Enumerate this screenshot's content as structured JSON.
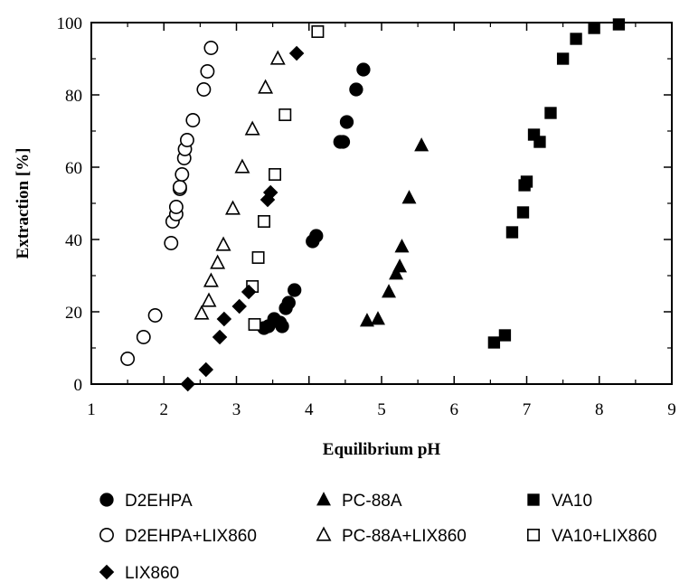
{
  "chart_data": {
    "type": "scatter",
    "title": "",
    "xlabel": "Equilibrium pH",
    "ylabel": "Extraction [%]",
    "xlim": [
      1,
      9
    ],
    "ylim": [
      0,
      100
    ],
    "x_ticks": [
      "1",
      "2",
      "3",
      "4",
      "5",
      "6",
      "7",
      "8",
      "9"
    ],
    "y_ticks": [
      "0",
      "20",
      "40",
      "60",
      "80",
      "100"
    ],
    "grid": false,
    "legend_position": "bottom",
    "series": [
      {
        "name": "D2EHPA",
        "marker": "filled-circle",
        "points": [
          [
            3.38,
            15.5
          ],
          [
            3.44,
            16
          ],
          [
            3.52,
            18
          ],
          [
            3.6,
            17
          ],
          [
            3.63,
            16
          ],
          [
            3.68,
            21
          ],
          [
            3.72,
            22.5
          ],
          [
            3.8,
            26
          ],
          [
            4.05,
            39.5
          ],
          [
            4.1,
            41
          ],
          [
            4.43,
            67
          ],
          [
            4.47,
            67
          ],
          [
            4.52,
            72.5
          ],
          [
            4.65,
            81.5
          ],
          [
            4.75,
            87
          ]
        ]
      },
      {
        "name": "PC-88A",
        "marker": "filled-triangle",
        "points": [
          [
            4.8,
            17.5
          ],
          [
            4.95,
            18
          ],
          [
            5.1,
            25.5
          ],
          [
            5.2,
            30.5
          ],
          [
            5.25,
            32.5
          ],
          [
            5.28,
            38
          ],
          [
            5.38,
            51.5
          ],
          [
            5.55,
            66
          ]
        ]
      },
      {
        "name": "VA10",
        "marker": "filled-square",
        "points": [
          [
            6.55,
            11.5
          ],
          [
            6.7,
            13.5
          ],
          [
            6.8,
            42
          ],
          [
            6.95,
            47.5
          ],
          [
            6.97,
            55
          ],
          [
            7.0,
            56
          ],
          [
            7.1,
            69
          ],
          [
            7.18,
            67
          ],
          [
            7.33,
            75
          ],
          [
            7.5,
            90
          ],
          [
            7.68,
            95.5
          ],
          [
            7.93,
            98.5
          ],
          [
            8.27,
            99.5
          ]
        ]
      },
      {
        "name": "D2EHPA+LIX860",
        "marker": "open-circle",
        "points": [
          [
            1.5,
            7
          ],
          [
            1.72,
            13
          ],
          [
            1.88,
            19
          ],
          [
            2.1,
            39
          ],
          [
            2.12,
            45
          ],
          [
            2.17,
            47
          ],
          [
            2.17,
            49
          ],
          [
            2.22,
            54
          ],
          [
            2.22,
            54.5
          ],
          [
            2.25,
            58
          ],
          [
            2.28,
            62.5
          ],
          [
            2.29,
            65
          ],
          [
            2.32,
            67.5
          ],
          [
            2.4,
            73
          ],
          [
            2.55,
            81.5
          ],
          [
            2.6,
            86.5
          ],
          [
            2.65,
            93
          ]
        ]
      },
      {
        "name": "PC-88A+LIX860",
        "marker": "open-triangle",
        "points": [
          [
            2.52,
            19.5
          ],
          [
            2.62,
            23
          ],
          [
            2.65,
            28.5
          ],
          [
            2.74,
            33.5
          ],
          [
            2.82,
            38.5
          ],
          [
            2.95,
            48.5
          ],
          [
            3.08,
            60
          ],
          [
            3.22,
            70.5
          ],
          [
            3.4,
            82
          ],
          [
            3.57,
            90
          ]
        ]
      },
      {
        "name": "VA10+LIX860",
        "marker": "open-square",
        "points": [
          [
            3.25,
            16.5
          ],
          [
            3.22,
            27
          ],
          [
            3.3,
            35
          ],
          [
            3.38,
            45
          ],
          [
            3.53,
            58
          ],
          [
            3.67,
            74.5
          ],
          [
            4.12,
            97.5
          ]
        ]
      },
      {
        "name": "LIX860",
        "marker": "filled-diamond",
        "points": [
          [
            2.33,
            0
          ],
          [
            2.58,
            4
          ],
          [
            2.77,
            13
          ],
          [
            2.83,
            18
          ],
          [
            3.04,
            21.5
          ],
          [
            3.17,
            25.5
          ],
          [
            3.43,
            51
          ],
          [
            3.47,
            53
          ],
          [
            3.83,
            91.5
          ]
        ]
      }
    ]
  }
}
